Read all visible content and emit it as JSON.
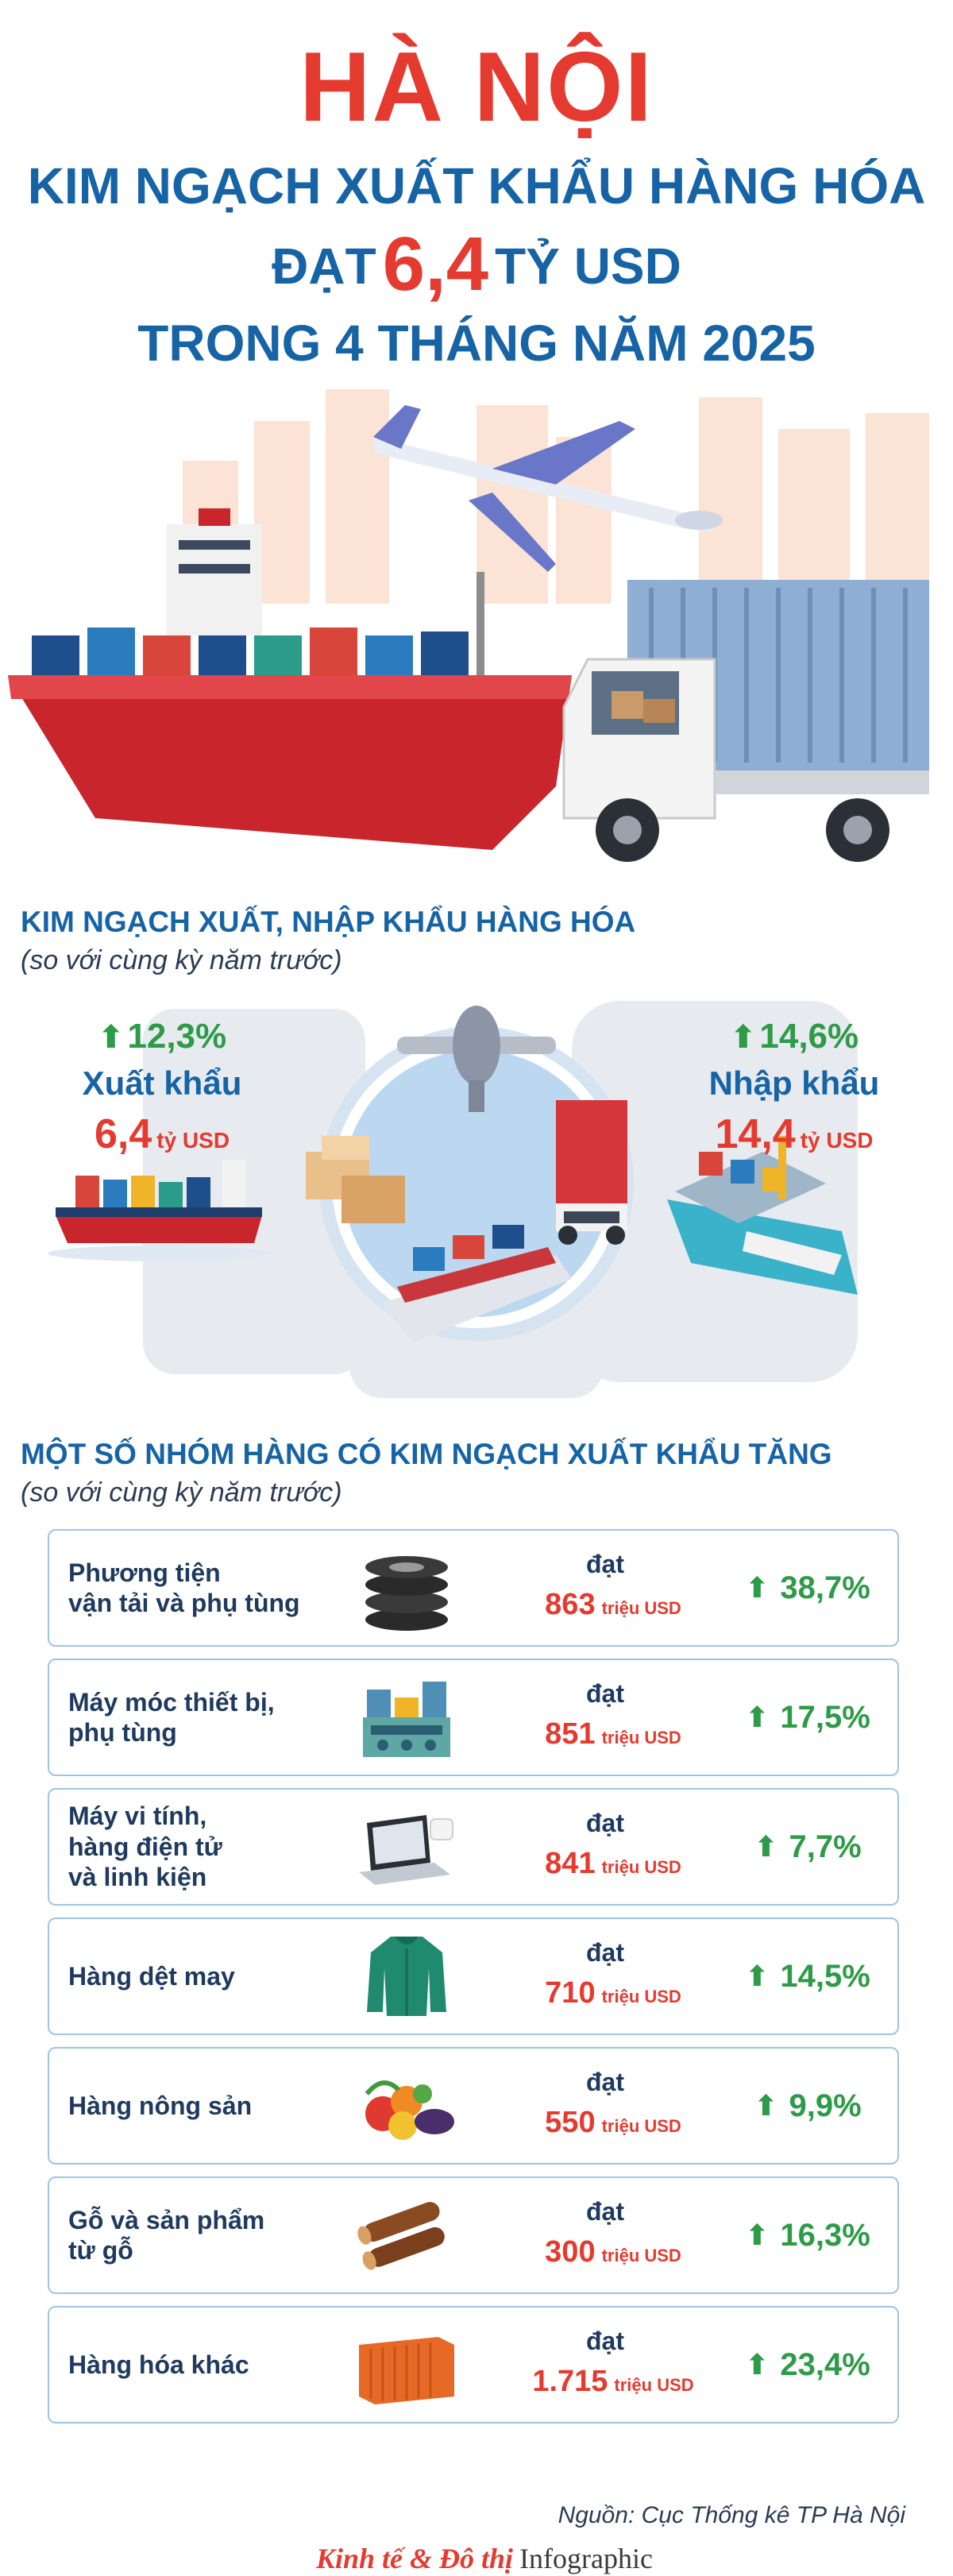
{
  "header": {
    "city": "HÀ NỘI",
    "line1": "KIM NGẠCH XUẤT KHẨU HÀNG HÓA",
    "line2_prefix": "ĐẠT",
    "line2_value": "6,4",
    "line2_suffix": "TỶ USD",
    "line3": "TRONG 4 THÁNG NĂM 2025"
  },
  "trade": {
    "title": "KIM NGẠCH XUẤT, NHẬP KHẨU HÀNG HÓA",
    "subtitle": "(so với cùng kỳ năm trước)",
    "export": {
      "change": "12,3%",
      "label": "Xuất khẩu",
      "value": "6,4",
      "unit": "tỷ USD"
    },
    "import": {
      "change": "14,6%",
      "label": "Nhập khẩu",
      "value": "14,4",
      "unit": "tỷ USD"
    }
  },
  "groups": {
    "title": "MỘT SỐ NHÓM HÀNG CÓ KIM NGẠCH XUẤT KHẨU TĂNG",
    "subtitle": "(so với cùng kỳ năm trước)",
    "reach_label": "đạt",
    "items": [
      {
        "name": "Phương tiện\nvận tải và phụ tùng",
        "amount": "863",
        "unit": "triệu USD",
        "change": "38,7%",
        "icon": "tires-icon"
      },
      {
        "name": "Máy móc thiết bị,\nphụ tùng",
        "amount": "851",
        "unit": "triệu USD",
        "change": "17,5%",
        "icon": "machinery-icon"
      },
      {
        "name": "Máy vi tính,\nhàng điện tử\nvà linh kiện",
        "amount": "841",
        "unit": "triệu USD",
        "change": "7,7%",
        "icon": "laptop-icon"
      },
      {
        "name": "Hàng dệt may",
        "amount": "710",
        "unit": "triệu USD",
        "change": "14,5%",
        "icon": "jacket-icon"
      },
      {
        "name": "Hàng nông sản",
        "amount": "550",
        "unit": "triệu USD",
        "change": "9,9%",
        "icon": "vegetables-icon"
      },
      {
        "name": "Gỗ và sản phẩm\ntừ gỗ",
        "amount": "300",
        "unit": "triệu USD",
        "change": "16,3%",
        "icon": "logs-icon"
      },
      {
        "name": "Hàng hóa khác",
        "amount": "1.715",
        "unit": "triệu USD",
        "change": "23,4%",
        "icon": "container-icon"
      }
    ]
  },
  "footer": {
    "source": "Nguồn: Cục Thống kê TP Hà Nội",
    "brand": "Kinh tế & Đô thị",
    "brand_suffix": "Infographic"
  },
  "colors": {
    "red": "#e53a2f",
    "blue": "#1663a6",
    "green": "#2d9b47"
  }
}
